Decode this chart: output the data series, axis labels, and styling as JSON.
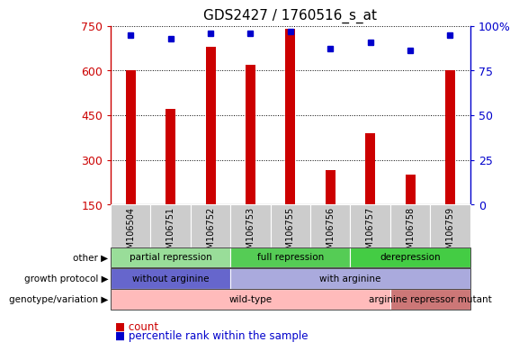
{
  "title": "GDS2427 / 1760516_s_at",
  "samples": [
    "GSM106504",
    "GSM106751",
    "GSM106752",
    "GSM106753",
    "GSM106755",
    "GSM106756",
    "GSM106757",
    "GSM106758",
    "GSM106759"
  ],
  "counts": [
    600,
    470,
    680,
    620,
    740,
    265,
    390,
    250,
    600
  ],
  "percentile_ranks": [
    95,
    93,
    96,
    96,
    97,
    87,
    91,
    86,
    95
  ],
  "ymin": 150,
  "ymax": 750,
  "yticks": [
    150,
    300,
    450,
    600,
    750
  ],
  "y2tick_pcts": [
    0,
    25,
    50,
    75,
    100
  ],
  "y2tick_labels": [
    "0",
    "25",
    "50",
    "75",
    "100%"
  ],
  "bar_color": "#cc0000",
  "dot_color": "#0000cc",
  "annotations": [
    {
      "label": "partial repression",
      "start": 0,
      "end": 3,
      "color": "#99dd99"
    },
    {
      "label": "full repression",
      "start": 3,
      "end": 6,
      "color": "#55cc55"
    },
    {
      "label": "derepression",
      "start": 6,
      "end": 9,
      "color": "#44cc44"
    }
  ],
  "growth_protocol": [
    {
      "label": "without arginine",
      "start": 0,
      "end": 3,
      "color": "#6666cc"
    },
    {
      "label": "with arginine",
      "start": 3,
      "end": 9,
      "color": "#aaaadd"
    }
  ],
  "genotype": [
    {
      "label": "wild-type",
      "start": 0,
      "end": 7,
      "color": "#ffbbbb"
    },
    {
      "label": "arginine repressor mutant",
      "start": 7,
      "end": 9,
      "color": "#cc7777"
    }
  ],
  "row_labels": [
    "other",
    "growth protocol",
    "genotype/variation"
  ],
  "legend_bar_label": "count",
  "legend_dot_label": "percentile rank within the sample",
  "tick_area_color": "#cccccc",
  "bar_color_legend": "#cc0000",
  "dot_color_legend": "#0000cc"
}
